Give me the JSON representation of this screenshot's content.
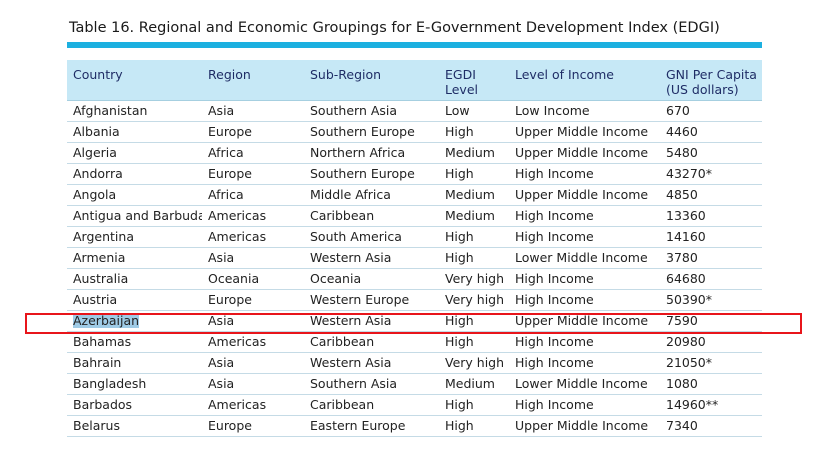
{
  "title": "Table 16.  Regional and Economic Groupings for E-Government Development Index (EDGI)",
  "colors": {
    "title_bar": "#1cb0e0",
    "header_bg": "#c6e8f6",
    "highlight_border": "#e8151b",
    "selection": "#9fcbe6"
  },
  "headers": {
    "country": "Country",
    "region": "Region",
    "subregion": "Sub-Region",
    "egdi_1": "EGDI",
    "egdi_2": "Level",
    "income": "Level of Income",
    "gni_1": "GNI Per Capita",
    "gni_2": "(US dollars)"
  },
  "rows": [
    [
      "Afghanistan",
      "Asia",
      "Southern Asia",
      "Low",
      "Low Income",
      "670"
    ],
    [
      "Albania",
      "Europe",
      "Southern Europe",
      "High",
      "Upper Middle Income",
      "4460"
    ],
    [
      "Algeria",
      "Africa",
      "Northern Africa",
      "Medium",
      "Upper Middle Income",
      "5480"
    ],
    [
      "Andorra",
      "Europe",
      "Southern Europe",
      "High",
      "High Income",
      "43270*"
    ],
    [
      "Angola",
      "Africa",
      "Middle Africa",
      "Medium",
      "Upper Middle Income",
      "4850"
    ],
    [
      "Antigua and Barbuda",
      "Americas",
      "Caribbean",
      "Medium",
      "High Income",
      "13360"
    ],
    [
      "Argentina",
      "Americas",
      "South America",
      "High",
      "High Income",
      "14160"
    ],
    [
      "Armenia",
      "Asia",
      "Western Asia",
      "High",
      "Lower Middle Income",
      "3780"
    ],
    [
      "Australia",
      "Oceania",
      "Oceania",
      "Very high",
      "High Income",
      "64680"
    ],
    [
      "Austria",
      "Europe",
      "Western Europe",
      "Very high",
      "High Income",
      "50390*"
    ],
    [
      "Azerbaijan",
      "Asia",
      "Western Asia",
      "High",
      "Upper Middle Income",
      "7590"
    ],
    [
      "Bahamas",
      "Americas",
      "Caribbean",
      "High",
      "High Income",
      "20980"
    ],
    [
      "Bahrain",
      "Asia",
      "Western Asia",
      "Very high",
      "High Income",
      "21050*"
    ],
    [
      "Bangladesh",
      "Asia",
      "Southern Asia",
      "Medium",
      "Lower Middle Income",
      "1080"
    ],
    [
      "Barbados",
      "Americas",
      "Caribbean",
      "High",
      "High Income",
      "14960**"
    ],
    [
      "Belarus",
      "Europe",
      "Eastern Europe",
      "High",
      "Upper Middle Income",
      "7340"
    ]
  ],
  "highlighted_country": "Azerbaijan"
}
